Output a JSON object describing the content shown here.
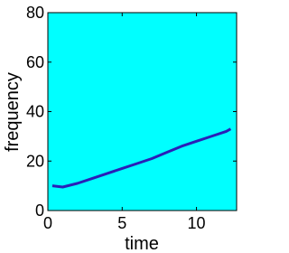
{
  "chart_data": {
    "type": "line",
    "xlabel": "time",
    "ylabel": "frequency",
    "x": [
      0.3,
      1,
      2,
      3,
      4,
      5,
      6,
      7,
      8,
      9,
      10,
      11,
      12,
      12.3
    ],
    "series": [
      {
        "color": "#2a1fb8",
        "values": [
          10,
          9.5,
          11,
          13,
          15,
          17,
          19,
          21,
          23.5,
          26,
          28,
          30,
          32,
          33
        ]
      }
    ],
    "background": "#00ffff",
    "xlim": [
      0,
      12.7
    ],
    "ylim": [
      0,
      80
    ],
    "xticks": [
      0,
      5,
      10
    ],
    "yticks": [
      0,
      20,
      40,
      60,
      80
    ]
  }
}
